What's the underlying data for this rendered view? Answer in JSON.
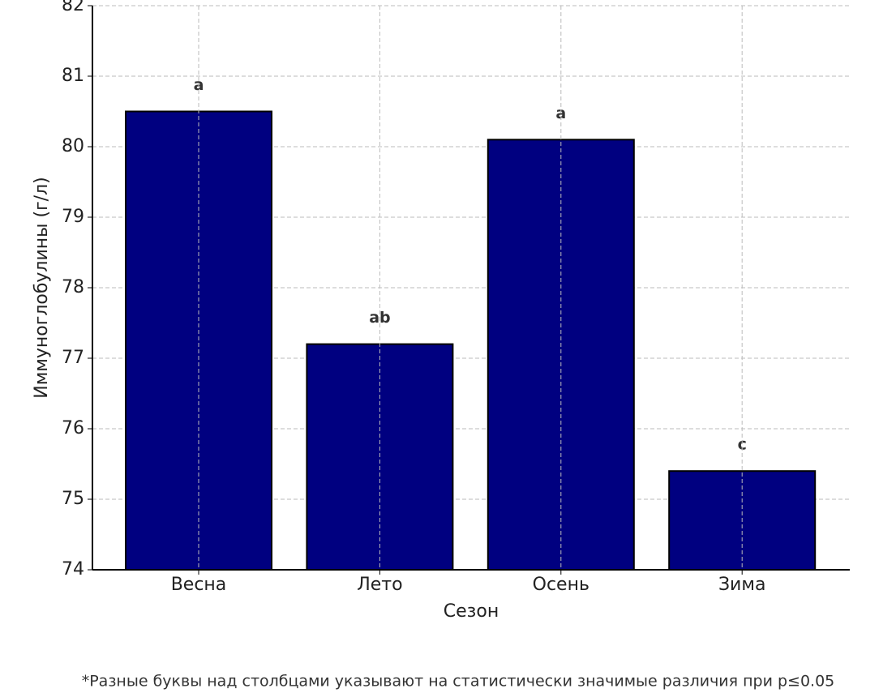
{
  "chart_data": {
    "type": "bar",
    "y_label": "Иммуноглобулины (г/л)",
    "x_label": "Сезон",
    "categories": [
      "Весна",
      "Лето",
      "Осень",
      "Зима"
    ],
    "values": [
      80.5,
      77.2,
      80.1,
      75.4
    ],
    "annotations": [
      "a",
      "ab",
      "a",
      "c"
    ],
    "color": "#000080",
    "ylim": [
      74,
      82
    ],
    "yticks": [
      74,
      75,
      76,
      77,
      78,
      79,
      80,
      81,
      82
    ],
    "grid": true,
    "footnote": "*Разные буквы над столбцами указывают на статистически значимые различия при p≤0.05"
  }
}
